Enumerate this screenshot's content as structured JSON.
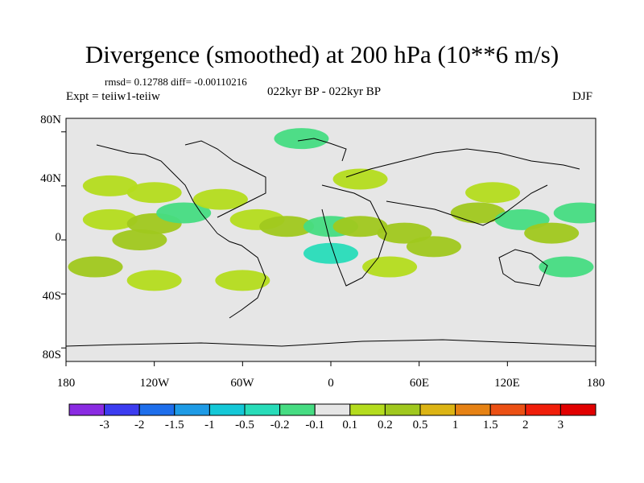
{
  "title": "Divergence (smoothed) at 200 hPa (10**6 m/s)",
  "stats": "rmsd= 0.12788 diff= -0.00110216",
  "experiment": "Expt = teiiw1-teiiw",
  "period": "022kyr BP - 022kyr BP",
  "season": "DJF",
  "chart_data": {
    "type": "heatmap",
    "projection": "cylindrical equidistant",
    "lon_range": [
      -180,
      180
    ],
    "lat_range": [
      -90,
      90
    ],
    "lat_ticks": [
      "80N",
      "40N",
      "0",
      "40S",
      "80S"
    ],
    "lon_ticks": [
      "180",
      "120W",
      "60W",
      "0",
      "60E",
      "120E",
      "180"
    ],
    "colorbar": {
      "labels": [
        "-3",
        "-2",
        "-1.5",
        "-1",
        "-0.5",
        "-0.2",
        "-0.1",
        "0.1",
        "0.2",
        "0.5",
        "1",
        "1.5",
        "2",
        "3"
      ],
      "colors": [
        "#8a2be2",
        "#3c3cf0",
        "#1e6eeb",
        "#1e9be6",
        "#14c8d7",
        "#28dcb9",
        "#46dc82",
        "#e6e6e6",
        "#b4dc1e",
        "#a0c81e",
        "#dcb414",
        "#e68214",
        "#eb5014",
        "#f01e0a",
        "#e10000"
      ]
    },
    "anomaly_regions": [
      {
        "lon": -150,
        "lat": 40,
        "value": 0.15
      },
      {
        "lon": -120,
        "lat": 35,
        "value": 0.15
      },
      {
        "lon": -150,
        "lat": 15,
        "value": 0.15
      },
      {
        "lon": -120,
        "lat": 12,
        "value": 0.3
      },
      {
        "lon": -130,
        "lat": 0,
        "value": 0.3
      },
      {
        "lon": -100,
        "lat": 20,
        "value": -0.15
      },
      {
        "lon": -75,
        "lat": 30,
        "value": 0.15
      },
      {
        "lon": -50,
        "lat": 15,
        "value": 0.15
      },
      {
        "lon": -30,
        "lat": 10,
        "value": 0.3
      },
      {
        "lon": 0,
        "lat": 10,
        "value": -0.15
      },
      {
        "lon": 20,
        "lat": 10,
        "value": 0.3
      },
      {
        "lon": 50,
        "lat": 5,
        "value": 0.3
      },
      {
        "lon": 70,
        "lat": -5,
        "value": 0.3
      },
      {
        "lon": 100,
        "lat": 20,
        "value": 0.3
      },
      {
        "lon": 110,
        "lat": 35,
        "value": 0.15
      },
      {
        "lon": 130,
        "lat": 15,
        "value": -0.15
      },
      {
        "lon": 150,
        "lat": 5,
        "value": 0.3
      },
      {
        "lon": 160,
        "lat": -20,
        "value": -0.15
      },
      {
        "lon": -160,
        "lat": -20,
        "value": 0.3
      },
      {
        "lon": -120,
        "lat": -30,
        "value": 0.15
      },
      {
        "lon": -60,
        "lat": -30,
        "value": 0.15
      },
      {
        "lon": 0,
        "lat": -10,
        "value": -0.3
      },
      {
        "lon": 40,
        "lat": -20,
        "value": 0.15
      },
      {
        "lon": 20,
        "lat": 45,
        "value": 0.15
      },
      {
        "lon": -20,
        "lat": 75,
        "value": -0.15
      },
      {
        "lon": 170,
        "lat": 20,
        "value": -0.15
      }
    ]
  }
}
